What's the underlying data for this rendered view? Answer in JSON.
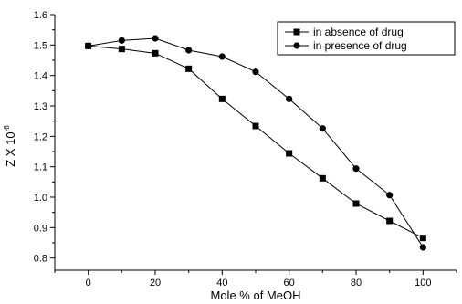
{
  "chart_data": {
    "type": "line",
    "title": "",
    "xlabel": "Mole % of MeOH",
    "ylabel": {
      "base": "Z X 10",
      "exponent": "-6"
    },
    "xlim": [
      -10,
      110
    ],
    "ylim": [
      0.76,
      1.6
    ],
    "x_ticks": [
      0,
      20,
      40,
      60,
      80,
      100
    ],
    "x_tick_labels": [
      "0",
      "20",
      "40",
      "60",
      "80",
      "100"
    ],
    "y_ticks": [
      0.8,
      0.9,
      1.0,
      1.1,
      1.2,
      1.3,
      1.4,
      1.5,
      1.6
    ],
    "y_tick_labels": [
      "0.8",
      "0.9",
      "1.0",
      "1.1",
      "1.2",
      "1.3",
      "1.4",
      "1.5",
      "1.6"
    ],
    "grid": false,
    "legend_position": "top-right",
    "series": [
      {
        "name": "in absence of drug",
        "marker": "square",
        "x": [
          0,
          10,
          20,
          30,
          40,
          50,
          60,
          70,
          80,
          90,
          100
        ],
        "y": [
          1.497,
          1.487,
          1.473,
          1.422,
          1.323,
          1.234,
          1.144,
          1.062,
          0.979,
          0.922,
          0.866
        ]
      },
      {
        "name": "in presence of drug",
        "marker": "circle",
        "x": [
          0,
          10,
          20,
          30,
          40,
          50,
          60,
          70,
          80,
          90,
          100
        ],
        "y": [
          1.497,
          1.515,
          1.522,
          1.483,
          1.462,
          1.412,
          1.323,
          1.226,
          1.094,
          1.007,
          0.835
        ]
      }
    ]
  }
}
